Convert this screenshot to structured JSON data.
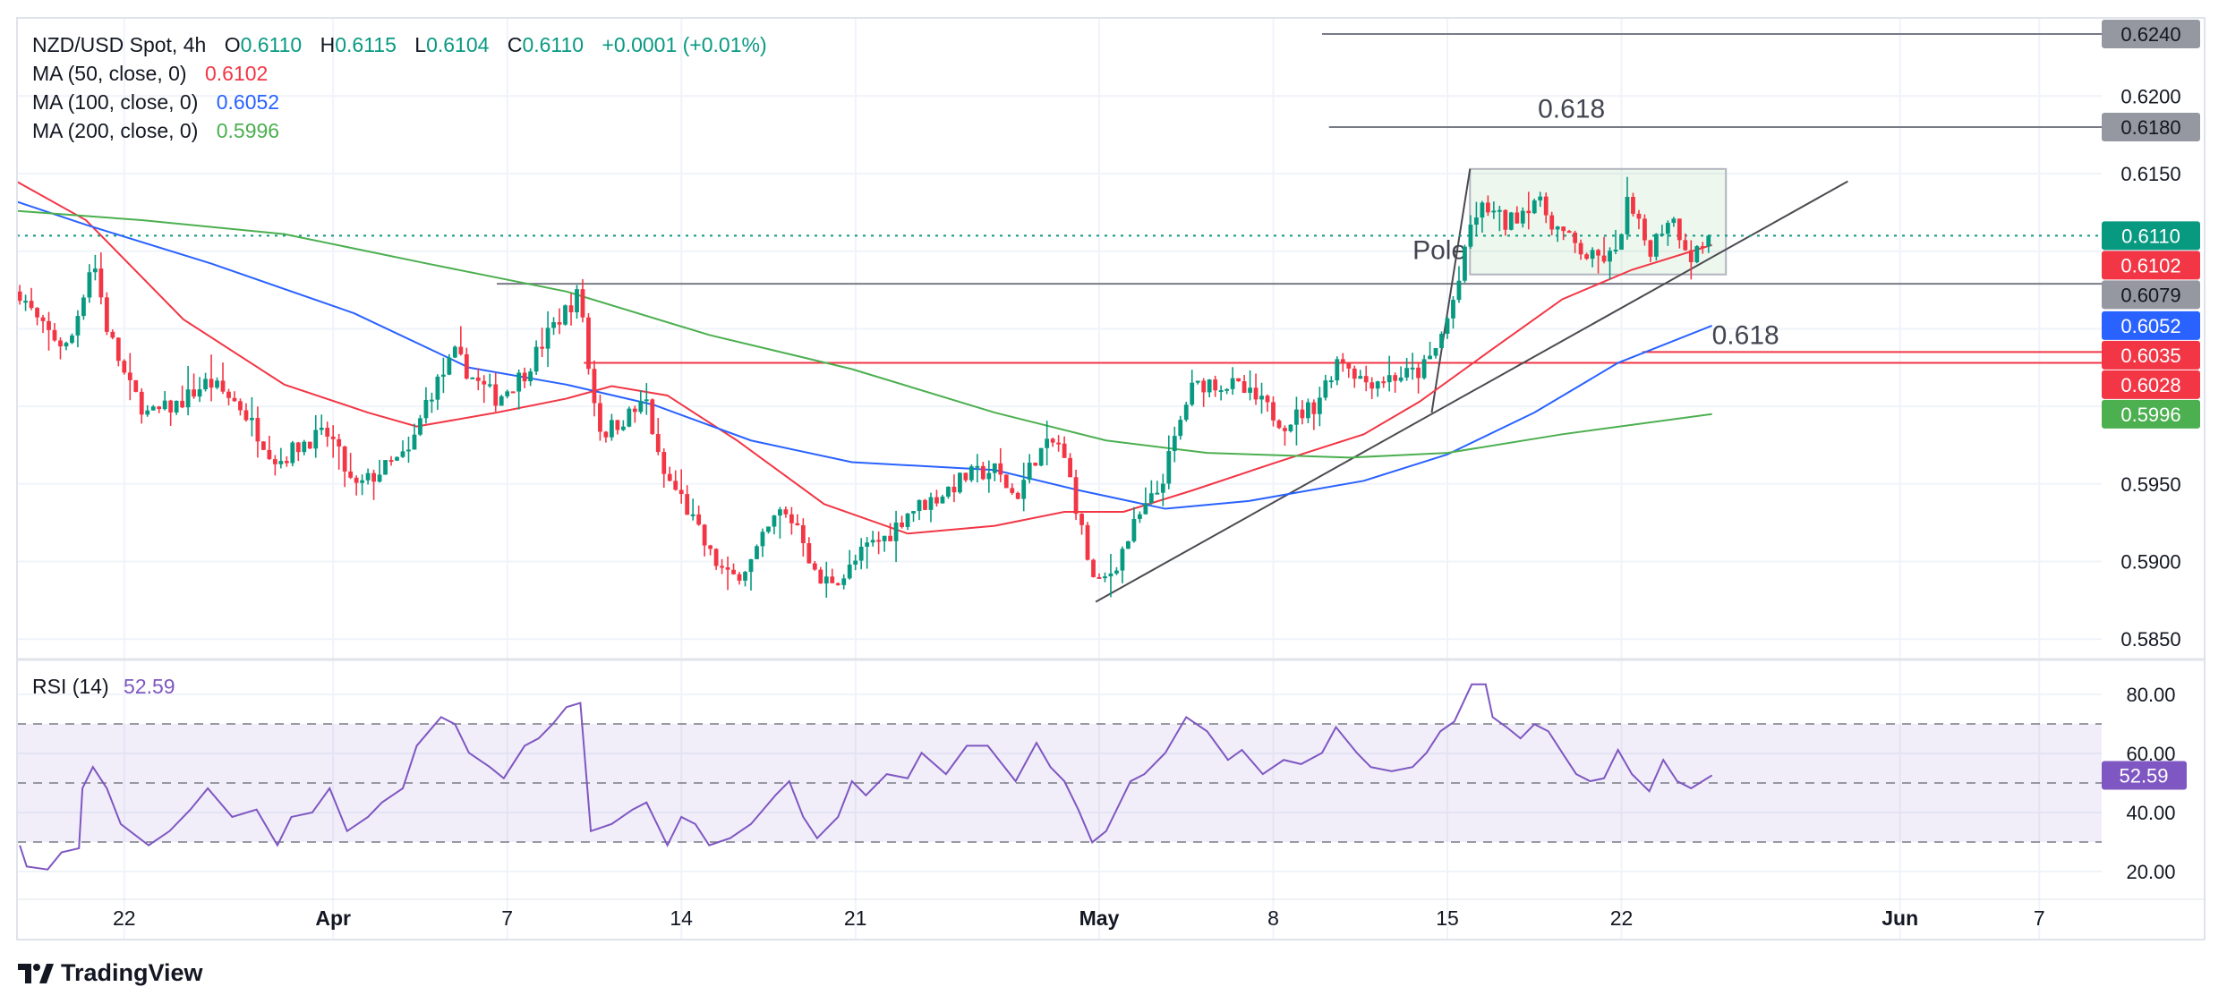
{
  "header": {
    "symbol": "NZD/USD Spot, 4h",
    "o_label": "O",
    "o": "0.6110",
    "h_label": "H",
    "h": "0.6115",
    "l_label": "L",
    "l": "0.6104",
    "c_label": "C",
    "c": "0.6110",
    "change": "+0.0001 (+0.01%)"
  },
  "indicators": [
    {
      "label": "MA (50, close, 0)",
      "value": "0.6102",
      "color": "#f23645"
    },
    {
      "label": "MA (100, close, 0)",
      "value": "0.6052",
      "color": "#2962ff"
    },
    {
      "label": "MA (200, close, 0)",
      "value": "0.5996",
      "color": "#4caf50"
    }
  ],
  "rsi_legend": {
    "label": "RSI (14)",
    "value": "52.59",
    "color": "#7e57c2"
  },
  "branding": {
    "name": "TradingView"
  },
  "chart_data": {
    "type": "candlestick",
    "title": "NZD/USD Spot, 4h",
    "x_unit": "trading days relative to May 1",
    "bars_per_day": 6,
    "x_range": [
      -31.0,
      17.6
    ],
    "ylim": [
      0.5835,
      0.6252
    ],
    "up_color": "#089981",
    "down_color": "#f23645",
    "price_ticks": [
      "0.6200",
      "0.6150",
      "0.5950",
      "0.5900",
      "0.5850"
    ],
    "grid_prices": [
      0.62,
      0.615,
      0.61,
      0.605,
      0.6,
      0.595,
      0.59,
      0.585
    ],
    "time_ticks": [
      {
        "label": "22",
        "d": -28
      },
      {
        "label": "Apr",
        "d": -22
      },
      {
        "label": "7",
        "d": -17
      },
      {
        "label": "14",
        "d": -12
      },
      {
        "label": "21",
        "d": -7
      },
      {
        "label": "May",
        "d": 0
      },
      {
        "label": "8",
        "d": 5
      },
      {
        "label": "15",
        "d": 10
      },
      {
        "label": "22",
        "d": 15
      },
      {
        "label": "Jun",
        "d": 23
      },
      {
        "label": "7",
        "d": 27
      }
    ],
    "close_path": [
      [
        -31.0,
        0.6074
      ],
      [
        -30.4,
        0.6051
      ],
      [
        -29.6,
        0.6037
      ],
      [
        -28.9,
        0.6097
      ],
      [
        -28.5,
        0.6051
      ],
      [
        -27.9,
        0.6014
      ],
      [
        -27.3,
        0.5994
      ],
      [
        -26.5,
        0.6001
      ],
      [
        -25.6,
        0.6016
      ],
      [
        -24.7,
        0.6001
      ],
      [
        -23.6,
        0.5964
      ],
      [
        -22.8,
        0.5978
      ],
      [
        -22.1,
        0.5982
      ],
      [
        -21.4,
        0.5946
      ],
      [
        -20.6,
        0.5959
      ],
      [
        -19.8,
        0.597
      ],
      [
        -19.3,
        0.6005
      ],
      [
        -18.5,
        0.6033
      ],
      [
        -17.9,
        0.6016
      ],
      [
        -17.3,
        0.6005
      ],
      [
        -16.5,
        0.6022
      ],
      [
        -15.7,
        0.6051
      ],
      [
        -14.9,
        0.6074
      ],
      [
        -14.7,
        0.6028
      ],
      [
        -14.3,
        0.5982
      ],
      [
        -13.4,
        0.5996
      ],
      [
        -13.0,
        0.6003
      ],
      [
        -12.6,
        0.5959
      ],
      [
        -12.0,
        0.5941
      ],
      [
        -11.2,
        0.5905
      ],
      [
        -10.6,
        0.5888
      ],
      [
        -10.0,
        0.59
      ],
      [
        -9.2,
        0.5932
      ],
      [
        -8.6,
        0.5923
      ],
      [
        -8.1,
        0.5886
      ],
      [
        -7.3,
        0.5891
      ],
      [
        -6.7,
        0.5909
      ],
      [
        -6.1,
        0.5916
      ],
      [
        -5.5,
        0.5932
      ],
      [
        -4.7,
        0.5941
      ],
      [
        -3.8,
        0.5955
      ],
      [
        -3.0,
        0.5959
      ],
      [
        -2.4,
        0.5941
      ],
      [
        -1.8,
        0.5969
      ],
      [
        -1.2,
        0.5978
      ],
      [
        -0.8,
        0.595
      ],
      [
        -0.4,
        0.5909
      ],
      [
        -0.1,
        0.5882
      ],
      [
        0.4,
        0.5895
      ],
      [
        1.1,
        0.5927
      ],
      [
        1.7,
        0.5946
      ],
      [
        2.1,
        0.5973
      ],
      [
        2.6,
        0.601
      ],
      [
        3.1,
        0.6016
      ],
      [
        3.9,
        0.6013
      ],
      [
        4.7,
        0.6001
      ],
      [
        5.3,
        0.5989
      ],
      [
        6.2,
        0.6001
      ],
      [
        6.9,
        0.6033
      ],
      [
        7.6,
        0.6016
      ],
      [
        8.4,
        0.6019
      ],
      [
        9.2,
        0.6022
      ],
      [
        9.6,
        0.6033
      ],
      [
        10.0,
        0.6056
      ],
      [
        10.4,
        0.6086
      ],
      [
        10.7,
        0.612
      ],
      [
        11.1,
        0.6129
      ],
      [
        11.7,
        0.6117
      ],
      [
        12.5,
        0.6134
      ],
      [
        13.3,
        0.6111
      ],
      [
        14.1,
        0.6095
      ],
      [
        14.9,
        0.6097
      ],
      [
        15.1,
        0.6134
      ],
      [
        15.8,
        0.6101
      ],
      [
        16.4,
        0.6124
      ],
      [
        17.0,
        0.6097
      ],
      [
        17.6,
        0.611
      ]
    ],
    "ma_series": [
      {
        "name": "MA 50",
        "color": "#f23645",
        "last": 0.6102,
        "points": [
          [
            -31.1,
            0.6145
          ],
          [
            -29.1,
            0.612
          ],
          [
            -26.3,
            0.6056
          ],
          [
            -23.4,
            0.6014
          ],
          [
            -21.0,
            0.5996
          ],
          [
            -19.6,
            0.5987
          ],
          [
            -17.3,
            0.5996
          ],
          [
            -15.3,
            0.6005
          ],
          [
            -14.0,
            0.6013
          ],
          [
            -12.4,
            0.6007
          ],
          [
            -10.4,
            0.5978
          ],
          [
            -7.9,
            0.5937
          ],
          [
            -5.5,
            0.5918
          ],
          [
            -3.0,
            0.5923
          ],
          [
            -1.0,
            0.5932
          ],
          [
            0.7,
            0.5932
          ],
          [
            2.7,
            0.5946
          ],
          [
            5.1,
            0.5964
          ],
          [
            7.6,
            0.5982
          ],
          [
            9.2,
            0.6003
          ],
          [
            11.3,
            0.6037
          ],
          [
            13.3,
            0.6069
          ],
          [
            15.3,
            0.6088
          ],
          [
            17.6,
            0.6104
          ]
        ]
      },
      {
        "name": "MA 100",
        "color": "#2962ff",
        "last": 0.6052,
        "points": [
          [
            -31.1,
            0.6132
          ],
          [
            -29.1,
            0.6117
          ],
          [
            -25.5,
            0.6092
          ],
          [
            -21.4,
            0.606
          ],
          [
            -18.1,
            0.6025
          ],
          [
            -15.3,
            0.6014
          ],
          [
            -12.8,
            0.6001
          ],
          [
            -10.0,
            0.5978
          ],
          [
            -7.1,
            0.5964
          ],
          [
            -3.0,
            0.5959
          ],
          [
            -0.6,
            0.5946
          ],
          [
            1.9,
            0.5934
          ],
          [
            4.3,
            0.5939
          ],
          [
            7.6,
            0.5952
          ],
          [
            10.0,
            0.5969
          ],
          [
            12.5,
            0.5996
          ],
          [
            14.9,
            0.6028
          ],
          [
            17.6,
            0.6052
          ]
        ]
      },
      {
        "name": "MA 200",
        "color": "#4caf50",
        "last": 0.5996,
        "points": [
          [
            -31.1,
            0.6126
          ],
          [
            -27.5,
            0.612
          ],
          [
            -23.4,
            0.6111
          ],
          [
            -19.3,
            0.6092
          ],
          [
            -15.3,
            0.6074
          ],
          [
            -11.2,
            0.6046
          ],
          [
            -7.1,
            0.6024
          ],
          [
            -3.0,
            0.5996
          ],
          [
            0.2,
            0.5978
          ],
          [
            3.1,
            0.597
          ],
          [
            7.2,
            0.5967
          ],
          [
            10.0,
            0.597
          ],
          [
            13.3,
            0.5982
          ],
          [
            17.6,
            0.5995
          ]
        ]
      }
    ],
    "price_labels": [
      {
        "text": "0.6240",
        "price": 0.624,
        "bg": "#9598a1",
        "fg": "#131722"
      },
      {
        "text": "0.6180",
        "price": 0.618,
        "bg": "#9598a1",
        "fg": "#131722"
      },
      {
        "text": "0.6110",
        "price": 0.611,
        "bg": "#089981",
        "fg": "#ffffff"
      },
      {
        "text": "0.6102",
        "price": 0.6102,
        "bg": "#f23645",
        "fg": "#ffffff"
      },
      {
        "text": "0.6079",
        "price": 0.6079,
        "bg": "#9598a1",
        "fg": "#131722"
      },
      {
        "text": "0.6052",
        "price": 0.6052,
        "bg": "#2962ff",
        "fg": "#ffffff"
      },
      {
        "text": "0.6035",
        "price": 0.6035,
        "bg": "#f23645",
        "fg": "#ffffff"
      },
      {
        "text": "0.6028",
        "price": 0.6028,
        "bg": "#f23645",
        "fg": "#ffffff"
      },
      {
        "text": "0.5996",
        "price": 0.5996,
        "bg": "#4caf50",
        "fg": "#ffffff"
      }
    ],
    "annotations": {
      "levels": [
        {
          "price": 0.624,
          "from_d": 6.4,
          "color": "#787b86"
        },
        {
          "price": 0.618,
          "from_d": 6.6,
          "color": "#787b86"
        },
        {
          "price": 0.6079,
          "from_d": -17.3,
          "color": "#787b86"
        },
        {
          "price": 0.6035,
          "from_d": 15.6,
          "color": "#f23645"
        },
        {
          "price": 0.6028,
          "from_d": -14.8,
          "color": "#f23645"
        }
      ],
      "texts": [
        {
          "text": "0.618",
          "d": 12.6,
          "price": 0.6186
        },
        {
          "text": "0.618",
          "d": 17.6,
          "price": 0.604
        },
        {
          "text": "Pole",
          "d": 9.0,
          "price": 0.6095
        }
      ],
      "trendline": [
        [
          -0.1,
          0.5874
        ],
        [
          21.5,
          0.6145
        ]
      ],
      "pole": [
        [
          9.55,
          0.5996
        ],
        [
          10.65,
          0.6153
        ]
      ],
      "flag_box": {
        "d": [
          10.65,
          18.0
        ],
        "price": [
          0.6085,
          0.6153
        ]
      },
      "last_price": 0.611
    },
    "rsi": {
      "title": "RSI (14)",
      "ylim": [
        15,
        88
      ],
      "ticks": [
        "80.00",
        "60.00",
        "40.00",
        "20.00"
      ],
      "band": [
        30,
        70
      ],
      "mid": 50,
      "last": 52.59,
      "last_label": "52.59",
      "color": "#7e57c2",
      "points": [
        [
          -31.0,
          28.9
        ],
        [
          -30.8,
          21.7
        ],
        [
          -30.2,
          20.7
        ],
        [
          -29.8,
          26.5
        ],
        [
          -29.3,
          27.9
        ],
        [
          -29.2,
          48.2
        ],
        [
          -28.9,
          55.4
        ],
        [
          -28.5,
          48.2
        ],
        [
          -28.1,
          36.1
        ],
        [
          -27.3,
          28.9
        ],
        [
          -26.7,
          33.7
        ],
        [
          -26.1,
          41.0
        ],
        [
          -25.6,
          48.2
        ],
        [
          -24.9,
          38.5
        ],
        [
          -24.2,
          41.0
        ],
        [
          -23.6,
          28.9
        ],
        [
          -23.2,
          38.5
        ],
        [
          -22.6,
          40.0
        ],
        [
          -22.1,
          48.2
        ],
        [
          -21.6,
          33.7
        ],
        [
          -21.0,
          38.5
        ],
        [
          -20.6,
          43.4
        ],
        [
          -20.0,
          48.2
        ],
        [
          -19.6,
          62.6
        ],
        [
          -18.9,
          72.3
        ],
        [
          -18.5,
          69.9
        ],
        [
          -18.1,
          60.2
        ],
        [
          -17.5,
          55.4
        ],
        [
          -17.1,
          51.6
        ],
        [
          -16.5,
          62.6
        ],
        [
          -16.1,
          65.1
        ],
        [
          -15.7,
          69.9
        ],
        [
          -15.3,
          75.7
        ],
        [
          -14.9,
          77.1
        ],
        [
          -14.6,
          33.7
        ],
        [
          -14.0,
          36.1
        ],
        [
          -13.4,
          41.0
        ],
        [
          -13.0,
          43.4
        ],
        [
          -12.4,
          28.9
        ],
        [
          -12.0,
          38.5
        ],
        [
          -11.6,
          36.1
        ],
        [
          -11.2,
          28.9
        ],
        [
          -10.6,
          31.3
        ],
        [
          -10.0,
          36.1
        ],
        [
          -9.3,
          45.8
        ],
        [
          -8.9,
          50.6
        ],
        [
          -8.5,
          38.5
        ],
        [
          -8.1,
          31.3
        ],
        [
          -7.5,
          38.5
        ],
        [
          -7.1,
          50.6
        ],
        [
          -6.7,
          45.8
        ],
        [
          -6.1,
          53.0
        ],
        [
          -5.5,
          51.6
        ],
        [
          -5.1,
          60.2
        ],
        [
          -4.4,
          53.0
        ],
        [
          -3.8,
          62.6
        ],
        [
          -3.2,
          62.6
        ],
        [
          -2.4,
          50.6
        ],
        [
          -1.8,
          63.6
        ],
        [
          -1.4,
          55.4
        ],
        [
          -1.0,
          50.6
        ],
        [
          -0.6,
          41.0
        ],
        [
          -0.2,
          29.9
        ],
        [
          0.2,
          33.7
        ],
        [
          0.9,
          50.6
        ],
        [
          1.3,
          53.0
        ],
        [
          1.9,
          60.2
        ],
        [
          2.5,
          72.3
        ],
        [
          3.1,
          67.5
        ],
        [
          3.7,
          57.8
        ],
        [
          4.1,
          61.2
        ],
        [
          4.7,
          53.0
        ],
        [
          5.3,
          57.8
        ],
        [
          5.8,
          56.4
        ],
        [
          6.4,
          60.2
        ],
        [
          6.8,
          68.9
        ],
        [
          7.4,
          60.2
        ],
        [
          7.8,
          55.4
        ],
        [
          8.4,
          54.0
        ],
        [
          9.0,
          55.4
        ],
        [
          9.4,
          60.2
        ],
        [
          9.8,
          67.5
        ],
        [
          10.2,
          70.8
        ],
        [
          10.7,
          83.4
        ],
        [
          11.1,
          83.4
        ],
        [
          11.3,
          72.3
        ],
        [
          11.7,
          68.9
        ],
        [
          12.1,
          65.1
        ],
        [
          12.5,
          69.9
        ],
        [
          12.9,
          67.5
        ],
        [
          13.3,
          60.2
        ],
        [
          13.7,
          53.0
        ],
        [
          14.1,
          50.6
        ],
        [
          14.5,
          51.6
        ],
        [
          14.9,
          61.2
        ],
        [
          15.3,
          53.0
        ],
        [
          15.8,
          47.2
        ],
        [
          16.2,
          57.8
        ],
        [
          16.6,
          50.6
        ],
        [
          17.0,
          48.2
        ],
        [
          17.6,
          52.6
        ]
      ]
    }
  }
}
